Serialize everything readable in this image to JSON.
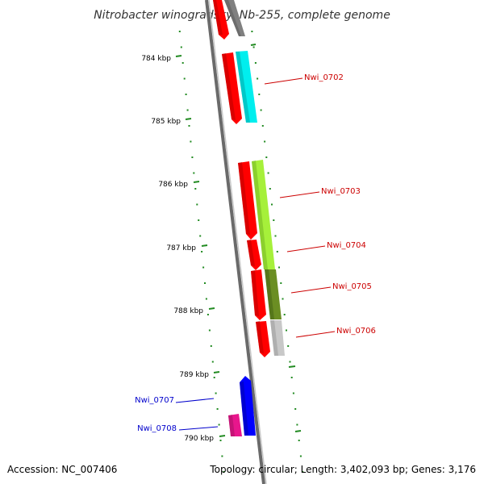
{
  "title": "Nitrobacter winogradskyi Nb-255, complete genome",
  "footer": {
    "accession": "Accession: NC_007406",
    "summary": "Topology: circular; Length: 3,402,093 bp; Genes: 3,176"
  },
  "ticks": [
    {
      "label": "784 kbp",
      "kbp": 784
    },
    {
      "label": "785 kbp",
      "kbp": 785
    },
    {
      "label": "786 kbp",
      "kbp": 786
    },
    {
      "label": "787 kbp",
      "kbp": 787
    },
    {
      "label": "788 kbp",
      "kbp": 788
    },
    {
      "label": "789 kbp",
      "kbp": 789
    },
    {
      "label": "790 kbp",
      "kbp": 790
    }
  ],
  "gene_labels": [
    {
      "label": "Nwi_0702",
      "color": "#cc0000"
    },
    {
      "label": "Nwi_0703",
      "color": "#cc0000"
    },
    {
      "label": "Nwi_0704",
      "color": "#cc0000"
    },
    {
      "label": "Nwi_0705",
      "color": "#cc0000"
    },
    {
      "label": "Nwi_0706",
      "color": "#cc0000"
    },
    {
      "label": "Nwi_0707",
      "color": "#0000cc"
    },
    {
      "label": "Nwi_0708",
      "color": "#0000cc"
    }
  ],
  "colors": {
    "backbone": "#888888",
    "ticks": "#228b22",
    "cds": "#ff0000",
    "reverse_gene": "#0000ff",
    "magenta": "#e8168c",
    "cyan": "#00eeee",
    "lime": "#a6f03a",
    "olive": "#6b8e23",
    "light_gray": "#c8c8c8",
    "dark_gray": "#808080"
  }
}
